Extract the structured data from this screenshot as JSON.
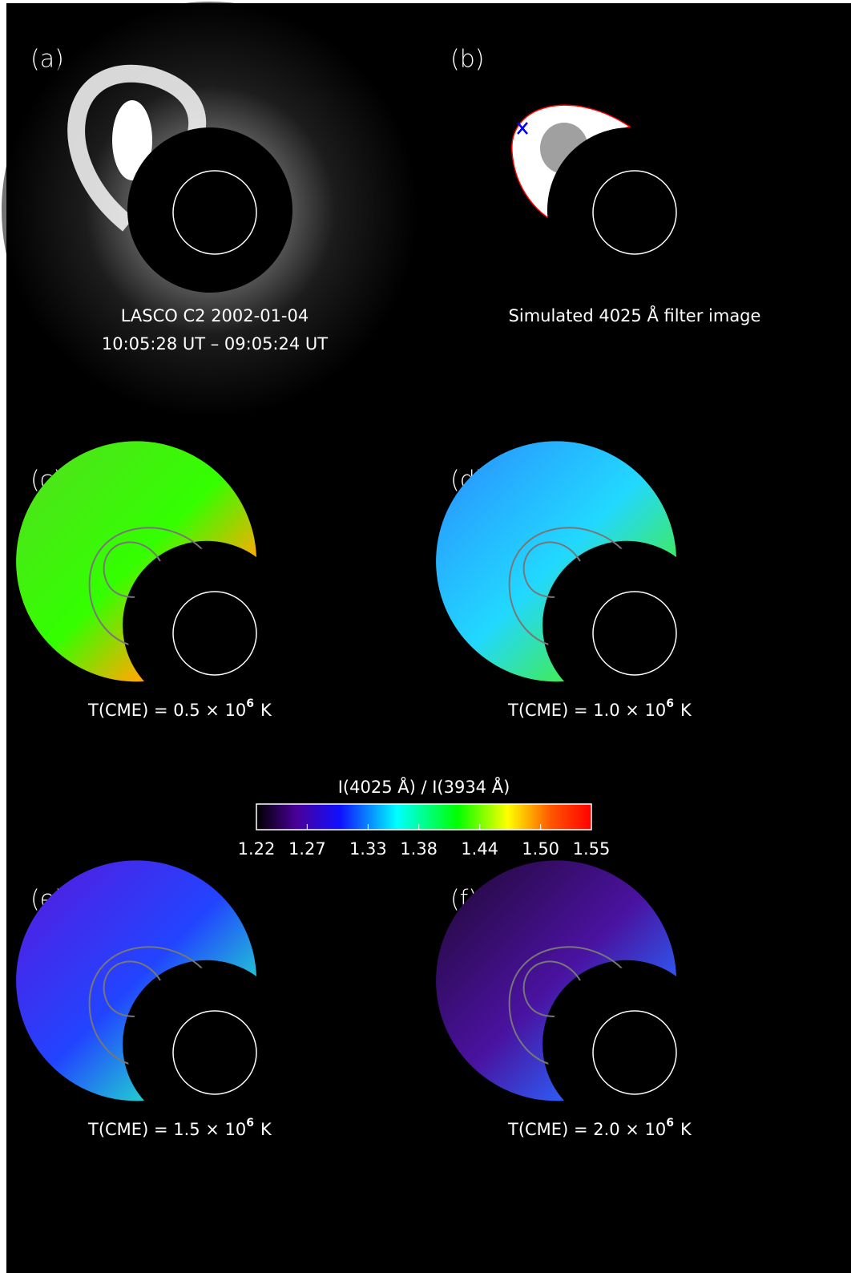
{
  "panels": [
    {
      "label": "(a)",
      "caption": [
        "LASCO C2 2002-01-04",
        "10:05:28 UT – 09:05:24 UT"
      ]
    },
    {
      "label": "(b)",
      "caption": [
        "Simulated 4025 Å filter image"
      ]
    },
    {
      "label": "(c)",
      "temperature": {
        "prefix": "T(CME) =  0.5 × 10",
        "exponent": "6",
        "unit": "K"
      }
    },
    {
      "label": "(d)",
      "temperature": {
        "prefix": "T(CME) =  1.0 × 10",
        "exponent": "6",
        "unit": "K"
      }
    },
    {
      "label": "(e)",
      "temperature": {
        "prefix": "T(CME) =  1.5 × 10",
        "exponent": "6",
        "unit": "K"
      }
    },
    {
      "label": "(f)",
      "temperature": {
        "prefix": "T(CME) =  2.0 × 10",
        "exponent": "6",
        "unit": "K"
      }
    }
  ],
  "colorbar": {
    "title": "I(4025 Å) / I(3934 Å)",
    "range": [
      1.22,
      1.55
    ],
    "ticks": [
      1.22,
      1.27,
      1.33,
      1.38,
      1.44,
      {
        "value": 1.5,
        "label": "1.50"
      },
      1.55
    ]
  }
}
